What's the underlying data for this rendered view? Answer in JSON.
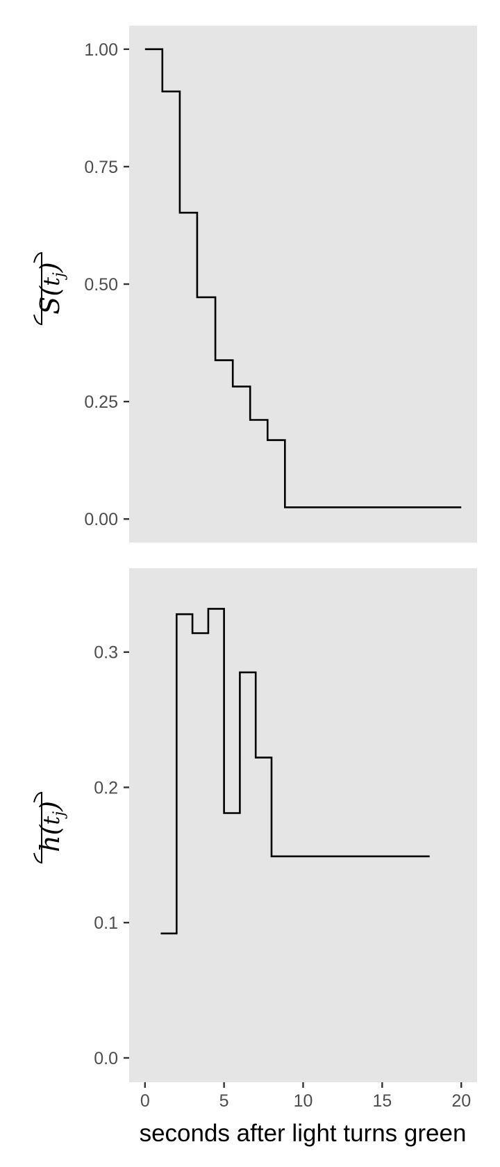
{
  "chart_data": [
    {
      "type": "line",
      "step": true,
      "x": [
        0,
        1.1,
        2.2,
        3.3,
        4.45,
        5.55,
        6.65,
        7.75,
        8.85,
        20
      ],
      "y": [
        1.0,
        0.91,
        0.652,
        0.472,
        0.338,
        0.282,
        0.211,
        0.168,
        0.025,
        0.025
      ],
      "xlim": [
        -1,
        21
      ],
      "ylim": [
        -0.05,
        1.05
      ],
      "ylabel": "S(t_j)",
      "ylabel_parts": {
        "main": "S",
        "open": "(",
        "var": "t",
        "sub": "j",
        "close": ")"
      },
      "yticks": [
        0,
        0.25,
        0.5,
        0.75,
        1
      ],
      "ytick_labels": [
        "0.00",
        "0.25",
        "0.50",
        "0.75",
        "1.00"
      ],
      "grid": false,
      "background": "#e5e5e5",
      "line_color": "#000000"
    },
    {
      "type": "line",
      "step": true,
      "x": [
        1,
        2,
        3,
        4,
        5,
        6,
        7,
        8,
        18
      ],
      "y": [
        0.092,
        0.328,
        0.314,
        0.332,
        0.181,
        0.285,
        0.222,
        0.149,
        0.149
      ],
      "xlim": [
        -1,
        21
      ],
      "ylim": [
        -0.018,
        0.362
      ],
      "ylabel": "h(t_j)",
      "ylabel_parts": {
        "main": "h",
        "open": "(",
        "var": "t",
        "sub": "j",
        "close": ")"
      },
      "yticks": [
        0,
        0.1,
        0.2,
        0.3
      ],
      "ytick_labels": [
        "0.0",
        "0.1",
        "0.2",
        "0.3"
      ],
      "xticks": [
        0,
        5,
        10,
        15,
        20
      ],
      "xtick_labels": [
        "0",
        "5",
        "10",
        "15",
        "20"
      ],
      "xlabel": "seconds after light turns green",
      "grid": false,
      "background": "#e5e5e5",
      "line_color": "#000000"
    }
  ]
}
